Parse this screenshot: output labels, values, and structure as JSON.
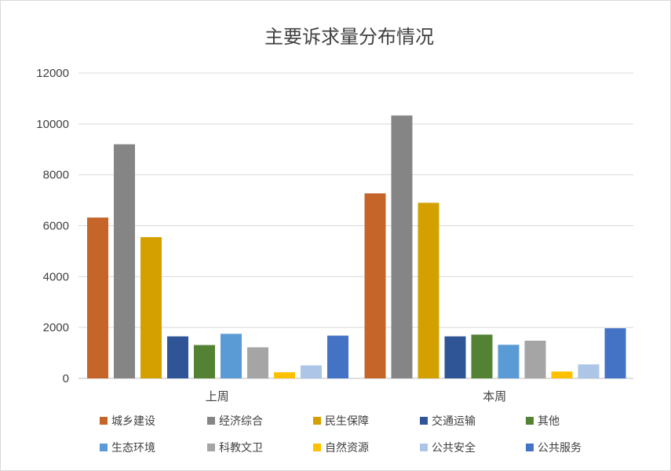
{
  "chart_data": {
    "type": "bar",
    "title": "主要诉求量分布情况",
    "xlabel": "",
    "ylabel": "",
    "ylim": [
      0,
      12000
    ],
    "yticks": [
      0,
      2000,
      4000,
      6000,
      8000,
      10000,
      12000
    ],
    "grid": true,
    "legend_position": "bottom",
    "categories": [
      "上周",
      "本周"
    ],
    "series": [
      {
        "name": "城乡建设",
        "color": "#c5652a",
        "values": [
          6320,
          7270
        ]
      },
      {
        "name": "经济综合",
        "color": "#858585",
        "values": [
          9200,
          10330
        ]
      },
      {
        "name": "民生保障",
        "color": "#d4a000",
        "values": [
          5550,
          6900
        ]
      },
      {
        "name": "交通运输",
        "color": "#2f5597",
        "values": [
          1650,
          1650
        ]
      },
      {
        "name": "其他",
        "color": "#548235",
        "values": [
          1310,
          1720
        ]
      },
      {
        "name": "生态环境",
        "color": "#5b9bd5",
        "values": [
          1750,
          1320
        ]
      },
      {
        "name": "科教文卫",
        "color": "#a5a5a5",
        "values": [
          1220,
          1480
        ]
      },
      {
        "name": "自然资源",
        "color": "#ffc000",
        "values": [
          240,
          270
        ]
      },
      {
        "name": "公共安全",
        "color": "#adc5e7",
        "values": [
          510,
          550
        ]
      },
      {
        "name": "公共服务",
        "color": "#4472c4",
        "values": [
          1680,
          1970
        ]
      }
    ]
  }
}
